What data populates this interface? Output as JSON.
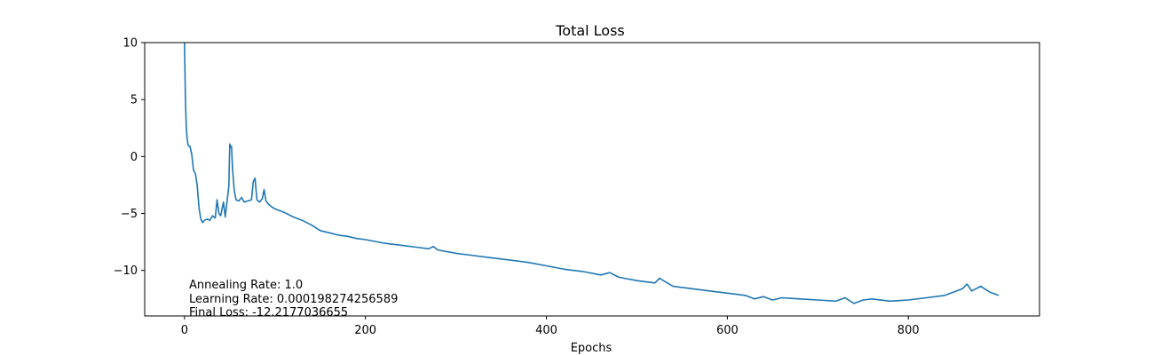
{
  "chart_data": {
    "type": "line",
    "title": "Total Loss",
    "xlabel": "Epochs",
    "ylabel": "",
    "xlim": [
      -44,
      945
    ],
    "ylim": [
      -14,
      10
    ],
    "xticks": [
      0,
      200,
      400,
      600,
      800
    ],
    "yticks": [
      10,
      5,
      0,
      -5,
      -10
    ],
    "xtick_labels": [
      "0",
      "200",
      "400",
      "600",
      "800"
    ],
    "ytick_labels": [
      "10",
      "5",
      "0",
      "−5",
      "−10"
    ],
    "grid": false,
    "line_color": "#1f77b4",
    "annotations": [
      "Annealing Rate: 1.0",
      "Learning Rate: 0.000198274256589",
      "Final Loss: -12.2177036655"
    ],
    "series": [
      {
        "x": [
          0,
          1,
          2,
          3,
          4,
          5,
          6,
          8,
          10,
          12,
          14,
          16,
          18,
          20,
          22,
          25,
          28,
          31,
          34,
          36,
          38,
          40,
          43,
          45,
          47,
          49,
          50,
          51,
          52,
          53,
          55,
          57,
          60,
          63,
          66,
          70,
          74,
          76,
          78,
          80,
          83,
          86,
          88,
          90,
          93,
          96,
          100,
          110,
          120,
          130,
          140,
          150,
          160,
          170,
          180,
          190,
          200,
          220,
          240,
          260,
          270,
          275,
          280,
          300,
          320,
          340,
          360,
          380,
          400,
          420,
          440,
          460,
          470,
          480,
          500,
          520,
          525,
          540,
          560,
          580,
          600,
          610,
          620,
          630,
          640,
          650,
          660,
          680,
          700,
          720,
          730,
          740,
          750,
          760,
          780,
          800,
          820,
          840,
          850,
          860,
          865,
          870,
          880,
          890,
          900
        ],
        "y": [
          10,
          5,
          2.5,
          1.5,
          1.0,
          0.9,
          0.9,
          0.2,
          -1.2,
          -1.5,
          -2.5,
          -4.5,
          -5.5,
          -5.8,
          -5.6,
          -5.5,
          -5.6,
          -5.2,
          -5.4,
          -3.8,
          -5.0,
          -5.2,
          -4.0,
          -5.3,
          -4.0,
          -2.6,
          1.1,
          0.8,
          0.9,
          -1.0,
          -3.0,
          -3.8,
          -3.9,
          -3.6,
          -4.0,
          -3.9,
          -3.8,
          -2.2,
          -1.9,
          -3.8,
          -4.0,
          -3.7,
          -2.9,
          -3.9,
          -4.2,
          -4.4,
          -4.6,
          -4.9,
          -5.3,
          -5.6,
          -6.0,
          -6.5,
          -6.7,
          -6.9,
          -7.0,
          -7.2,
          -7.3,
          -7.6,
          -7.8,
          -8.0,
          -8.1,
          -7.9,
          -8.2,
          -8.5,
          -8.7,
          -8.9,
          -9.1,
          -9.3,
          -9.6,
          -9.9,
          -10.1,
          -10.4,
          -10.2,
          -10.6,
          -10.9,
          -11.1,
          -10.7,
          -11.4,
          -11.6,
          -11.8,
          -12.0,
          -12.1,
          -12.2,
          -12.5,
          -12.3,
          -12.6,
          -12.4,
          -12.5,
          -12.6,
          -12.7,
          -12.4,
          -12.9,
          -12.6,
          -12.5,
          -12.7,
          -12.6,
          -12.4,
          -12.2,
          -11.9,
          -11.6,
          -11.2,
          -11.8,
          -11.4,
          -11.9,
          -12.2
        ]
      }
    ]
  }
}
